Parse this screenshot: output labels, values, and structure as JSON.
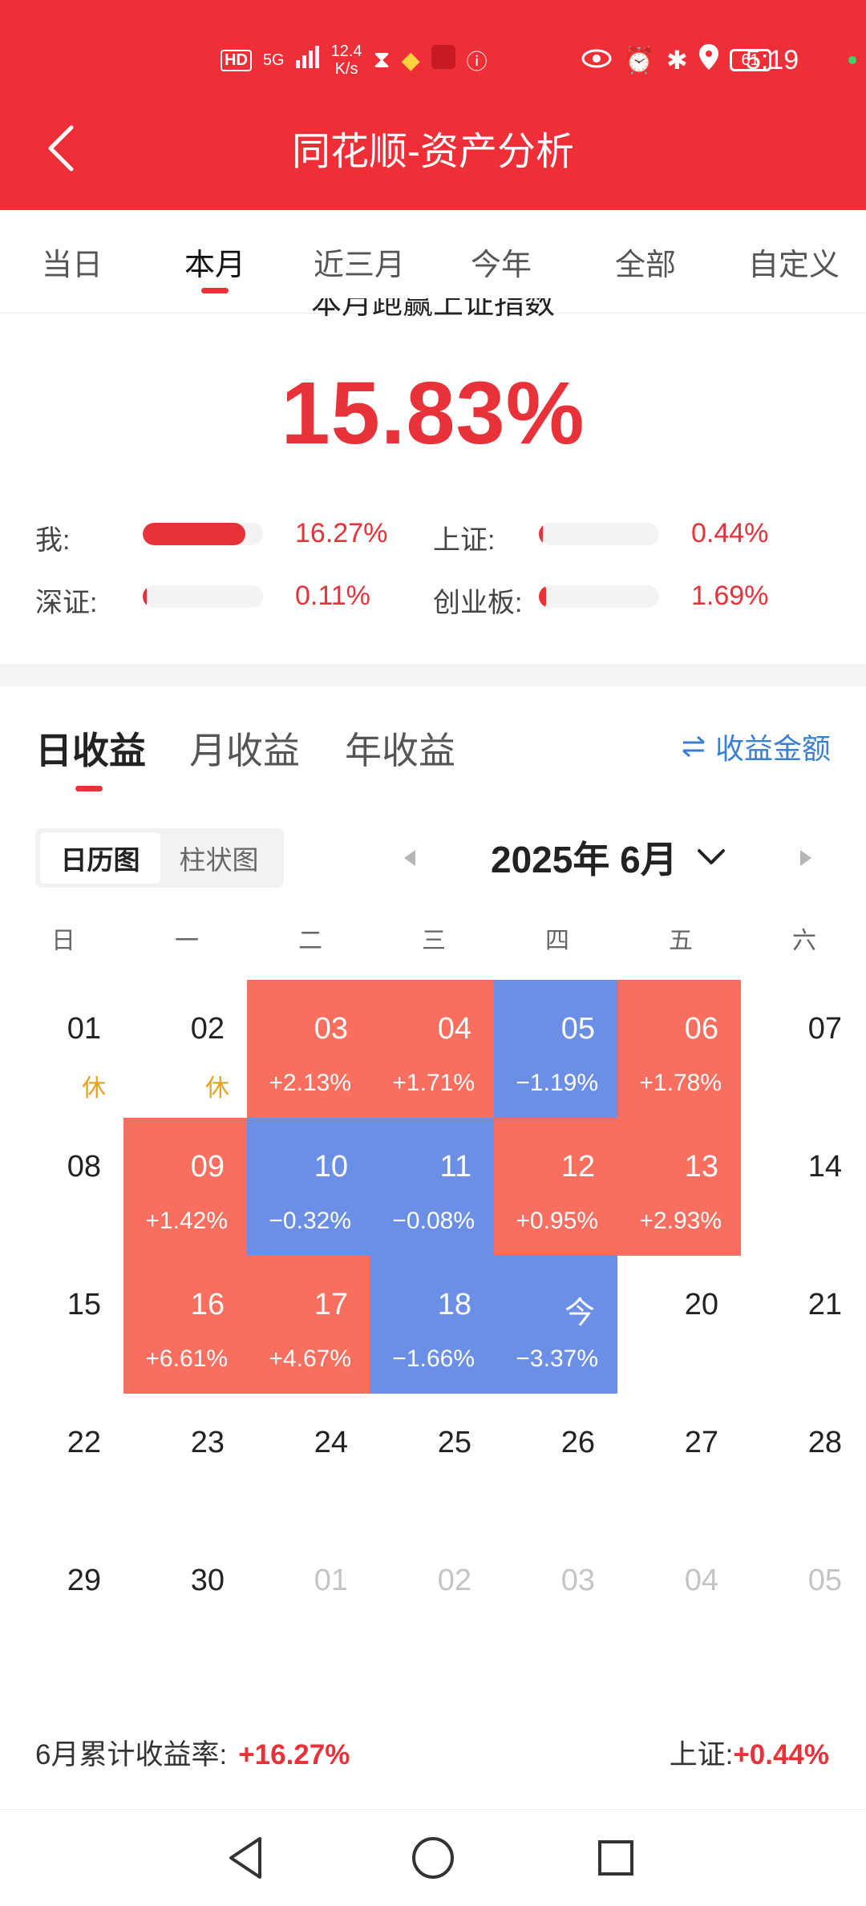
{
  "status": {
    "hd": "HD",
    "signal": "5G",
    "net_speed_top": "12.4",
    "net_speed_bottom": "K/s",
    "battery": "61",
    "time": "5:19"
  },
  "header": {
    "title": "同花顺-资产分析"
  },
  "tabs": [
    {
      "label": "当日"
    },
    {
      "label": "本月",
      "active": true
    },
    {
      "label": "近三月"
    },
    {
      "label": "今年"
    },
    {
      "label": "全部"
    },
    {
      "label": "自定义"
    }
  ],
  "summary_top": {
    "headline_partial": "本月跑赢上证指数",
    "beat_pct": "15.83%",
    "comparisons": [
      {
        "label": "我:",
        "value": "16.27%",
        "fill": 0.85
      },
      {
        "label": "上证:",
        "value": "0.44%",
        "fill": 0.02
      },
      {
        "label": "深证:",
        "value": "0.11%",
        "fill": 0.01
      },
      {
        "label": "创业板:",
        "value": "1.69%",
        "fill": 0.06
      }
    ]
  },
  "returns_tabs": [
    {
      "label": "日收益",
      "active": true
    },
    {
      "label": "月收益"
    },
    {
      "label": "年收益"
    }
  ],
  "amount_toggle": {
    "icon": "swap-icon",
    "label": "收益金额"
  },
  "view_toggle": [
    {
      "label": "日历图",
      "active": true
    },
    {
      "label": "柱状图"
    }
  ],
  "calendar": {
    "month_label": "2025年 6月",
    "weekdays": [
      "日",
      "一",
      "二",
      "三",
      "四",
      "五",
      "六"
    ],
    "weeks": [
      [
        {
          "day": "01",
          "note": "休"
        },
        {
          "day": "02",
          "note": "休"
        },
        {
          "day": "03",
          "ret": "+2.13%",
          "dir": "up"
        },
        {
          "day": "04",
          "ret": "+1.71%",
          "dir": "up"
        },
        {
          "day": "05",
          "ret": "−1.19%",
          "dir": "down"
        },
        {
          "day": "06",
          "ret": "+1.78%",
          "dir": "up"
        },
        {
          "day": "07"
        }
      ],
      [
        {
          "day": "08"
        },
        {
          "day": "09",
          "ret": "+1.42%",
          "dir": "up"
        },
        {
          "day": "10",
          "ret": "−0.32%",
          "dir": "down"
        },
        {
          "day": "11",
          "ret": "−0.08%",
          "dir": "down"
        },
        {
          "day": "12",
          "ret": "+0.95%",
          "dir": "up"
        },
        {
          "day": "13",
          "ret": "+2.93%",
          "dir": "up"
        },
        {
          "day": "14"
        }
      ],
      [
        {
          "day": "15"
        },
        {
          "day": "16",
          "ret": "+6.61%",
          "dir": "up"
        },
        {
          "day": "17",
          "ret": "+4.67%",
          "dir": "up"
        },
        {
          "day": "18",
          "ret": "−1.66%",
          "dir": "down"
        },
        {
          "day": "今",
          "ret": "−3.37%",
          "dir": "down"
        },
        {
          "day": "20"
        },
        {
          "day": "21"
        }
      ],
      [
        {
          "day": "22"
        },
        {
          "day": "23"
        },
        {
          "day": "24"
        },
        {
          "day": "25"
        },
        {
          "day": "26"
        },
        {
          "day": "27"
        },
        {
          "day": "28"
        }
      ],
      [
        {
          "day": "29"
        },
        {
          "day": "30"
        },
        {
          "day": "01",
          "other": true
        },
        {
          "day": "02",
          "other": true
        },
        {
          "day": "03",
          "other": true
        },
        {
          "day": "04",
          "other": true
        },
        {
          "day": "05",
          "other": true
        }
      ]
    ]
  },
  "footer": {
    "left_label": "6月累计收益率:",
    "left_value": "+16.27%",
    "right_label": "上证:",
    "right_value": "+0.44%"
  },
  "colors": {
    "brand": "#ef2f38",
    "up": "#f96f5f",
    "down": "#6c8fe6",
    "link": "#3a7fd0"
  }
}
